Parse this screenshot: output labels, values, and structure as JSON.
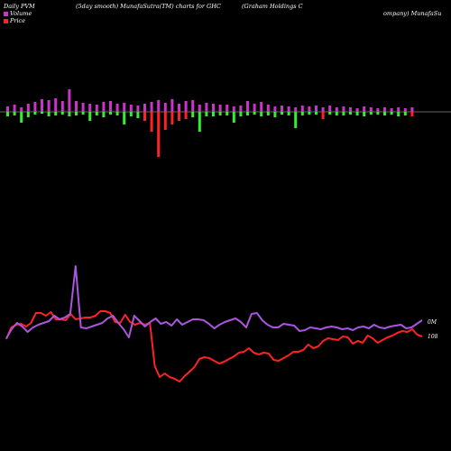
{
  "header": {
    "left": "Daily PVM",
    "mid": "(5day smooth) MunafaSutra(TM) charts for GHC",
    "right_line1": "(Graham Holdings C",
    "right_line2": "ompany) MunafaSu"
  },
  "colors": {
    "volume_up": "#cc33cc",
    "volume_down_red": "#ff2222",
    "volume_down_green": "#33ee33",
    "volume_line": "#aa55dd",
    "price_line": "#ff2222",
    "baseline": "#cccccc"
  },
  "chart_data": {
    "type": "bar",
    "legend_placement": "top-left",
    "legend": [
      {
        "name": "Volume",
        "color": "#cc33cc"
      },
      {
        "name": "Price",
        "color": "#ff2222"
      }
    ],
    "volume_bars": [
      {
        "up": 6,
        "down": 5,
        "dc": "g"
      },
      {
        "up": 8,
        "down": 4,
        "dc": "g"
      },
      {
        "up": 5,
        "down": 12,
        "dc": "g"
      },
      {
        "up": 9,
        "down": 6,
        "dc": "g"
      },
      {
        "up": 11,
        "down": 3,
        "dc": "g"
      },
      {
        "up": 14,
        "down": 2,
        "dc": "g"
      },
      {
        "up": 13,
        "down": 5,
        "dc": "g"
      },
      {
        "up": 15,
        "down": 4,
        "dc": "g"
      },
      {
        "up": 12,
        "down": 3,
        "dc": "g"
      },
      {
        "up": 25,
        "down": 5,
        "dc": "g"
      },
      {
        "up": 12,
        "down": 4,
        "dc": "g"
      },
      {
        "up": 10,
        "down": 3,
        "dc": "g"
      },
      {
        "up": 9,
        "down": 10,
        "dc": "g"
      },
      {
        "up": 8,
        "down": 4,
        "dc": "g"
      },
      {
        "up": 11,
        "down": 6,
        "dc": "g"
      },
      {
        "up": 12,
        "down": 3,
        "dc": "g"
      },
      {
        "up": 9,
        "down": 4,
        "dc": "g"
      },
      {
        "up": 10,
        "down": 14,
        "dc": "g"
      },
      {
        "up": 8,
        "down": 5,
        "dc": "g"
      },
      {
        "up": 7,
        "down": 7,
        "dc": "g"
      },
      {
        "up": 9,
        "down": 10,
        "dc": "r"
      },
      {
        "up": 11,
        "down": 22,
        "dc": "r"
      },
      {
        "up": 13,
        "down": 50,
        "dc": "r"
      },
      {
        "up": 10,
        "down": 20,
        "dc": "r"
      },
      {
        "up": 14,
        "down": 14,
        "dc": "r"
      },
      {
        "up": 9,
        "down": 10,
        "dc": "r"
      },
      {
        "up": 12,
        "down": 8,
        "dc": "r"
      },
      {
        "up": 13,
        "down": 6,
        "dc": "g"
      },
      {
        "up": 8,
        "down": 22,
        "dc": "g"
      },
      {
        "up": 10,
        "down": 5,
        "dc": "g"
      },
      {
        "up": 9,
        "down": 5,
        "dc": "g"
      },
      {
        "up": 8,
        "down": 4,
        "dc": "g"
      },
      {
        "up": 8,
        "down": 4,
        "dc": "g"
      },
      {
        "up": 6,
        "down": 12,
        "dc": "g"
      },
      {
        "up": 7,
        "down": 5,
        "dc": "g"
      },
      {
        "up": 12,
        "down": 4,
        "dc": "g"
      },
      {
        "up": 9,
        "down": 3,
        "dc": "g"
      },
      {
        "up": 11,
        "down": 5,
        "dc": "g"
      },
      {
        "up": 8,
        "down": 4,
        "dc": "g"
      },
      {
        "up": 6,
        "down": 6,
        "dc": "g"
      },
      {
        "up": 7,
        "down": 3,
        "dc": "g"
      },
      {
        "up": 6,
        "down": 4,
        "dc": "g"
      },
      {
        "up": 5,
        "down": 18,
        "dc": "g"
      },
      {
        "up": 7,
        "down": 4,
        "dc": "g"
      },
      {
        "up": 6,
        "down": 3,
        "dc": "g"
      },
      {
        "up": 7,
        "down": 3,
        "dc": "g"
      },
      {
        "up": 5,
        "down": 8,
        "dc": "r"
      },
      {
        "up": 7,
        "down": 3,
        "dc": "g"
      },
      {
        "up": 5,
        "down": 4,
        "dc": "g"
      },
      {
        "up": 6,
        "down": 4,
        "dc": "g"
      },
      {
        "up": 5,
        "down": 3,
        "dc": "g"
      },
      {
        "up": 4,
        "down": 4,
        "dc": "g"
      },
      {
        "up": 6,
        "down": 5,
        "dc": "g"
      },
      {
        "up": 5,
        "down": 3,
        "dc": "g"
      },
      {
        "up": 4,
        "down": 3,
        "dc": "g"
      },
      {
        "up": 5,
        "down": 4,
        "dc": "g"
      },
      {
        "up": 4,
        "down": 3,
        "dc": "g"
      },
      {
        "up": 5,
        "down": 5,
        "dc": "g"
      },
      {
        "up": 4,
        "down": 4,
        "dc": "g"
      },
      {
        "up": 5,
        "down": 5,
        "dc": "r"
      }
    ],
    "volume_line": [
      45,
      55,
      62,
      58,
      52,
      57,
      60,
      62,
      64,
      70,
      66,
      68,
      72,
      125,
      57,
      56,
      58,
      60,
      62,
      67,
      70,
      62,
      55,
      46,
      70,
      64,
      58,
      63,
      67,
      61,
      63,
      59,
      66,
      60,
      63,
      66,
      66,
      65,
      61,
      56,
      60,
      63,
      65,
      67,
      63,
      57,
      72,
      73,
      65,
      60,
      57,
      57,
      61,
      60,
      59,
      53,
      54,
      57,
      56,
      55,
      57,
      58,
      57,
      55,
      56,
      54,
      57,
      58,
      56,
      60,
      57,
      56,
      58,
      59,
      60,
      56,
      57,
      61,
      65
    ],
    "price_line": [
      44,
      57,
      60,
      61,
      58,
      62,
      73,
      73,
      70,
      74,
      66,
      66,
      65,
      72,
      66,
      67,
      68,
      68,
      70,
      75,
      75,
      73,
      63,
      62,
      71,
      63,
      60,
      62,
      60,
      62,
      14,
      2,
      6,
      2,
      0,
      -3,
      3,
      8,
      13,
      22,
      24,
      23,
      20,
      17,
      19,
      22,
      25,
      29,
      30,
      34,
      29,
      27,
      29,
      28,
      21,
      20,
      23,
      26,
      30,
      30,
      32,
      38,
      34,
      36,
      42,
      45,
      44,
      43,
      47,
      46,
      39,
      42,
      40,
      48,
      45,
      40,
      43,
      46,
      48,
      51,
      53,
      52,
      55,
      49,
      47
    ],
    "right_labels": {
      "volume": "0M",
      "price": "108"
    }
  }
}
